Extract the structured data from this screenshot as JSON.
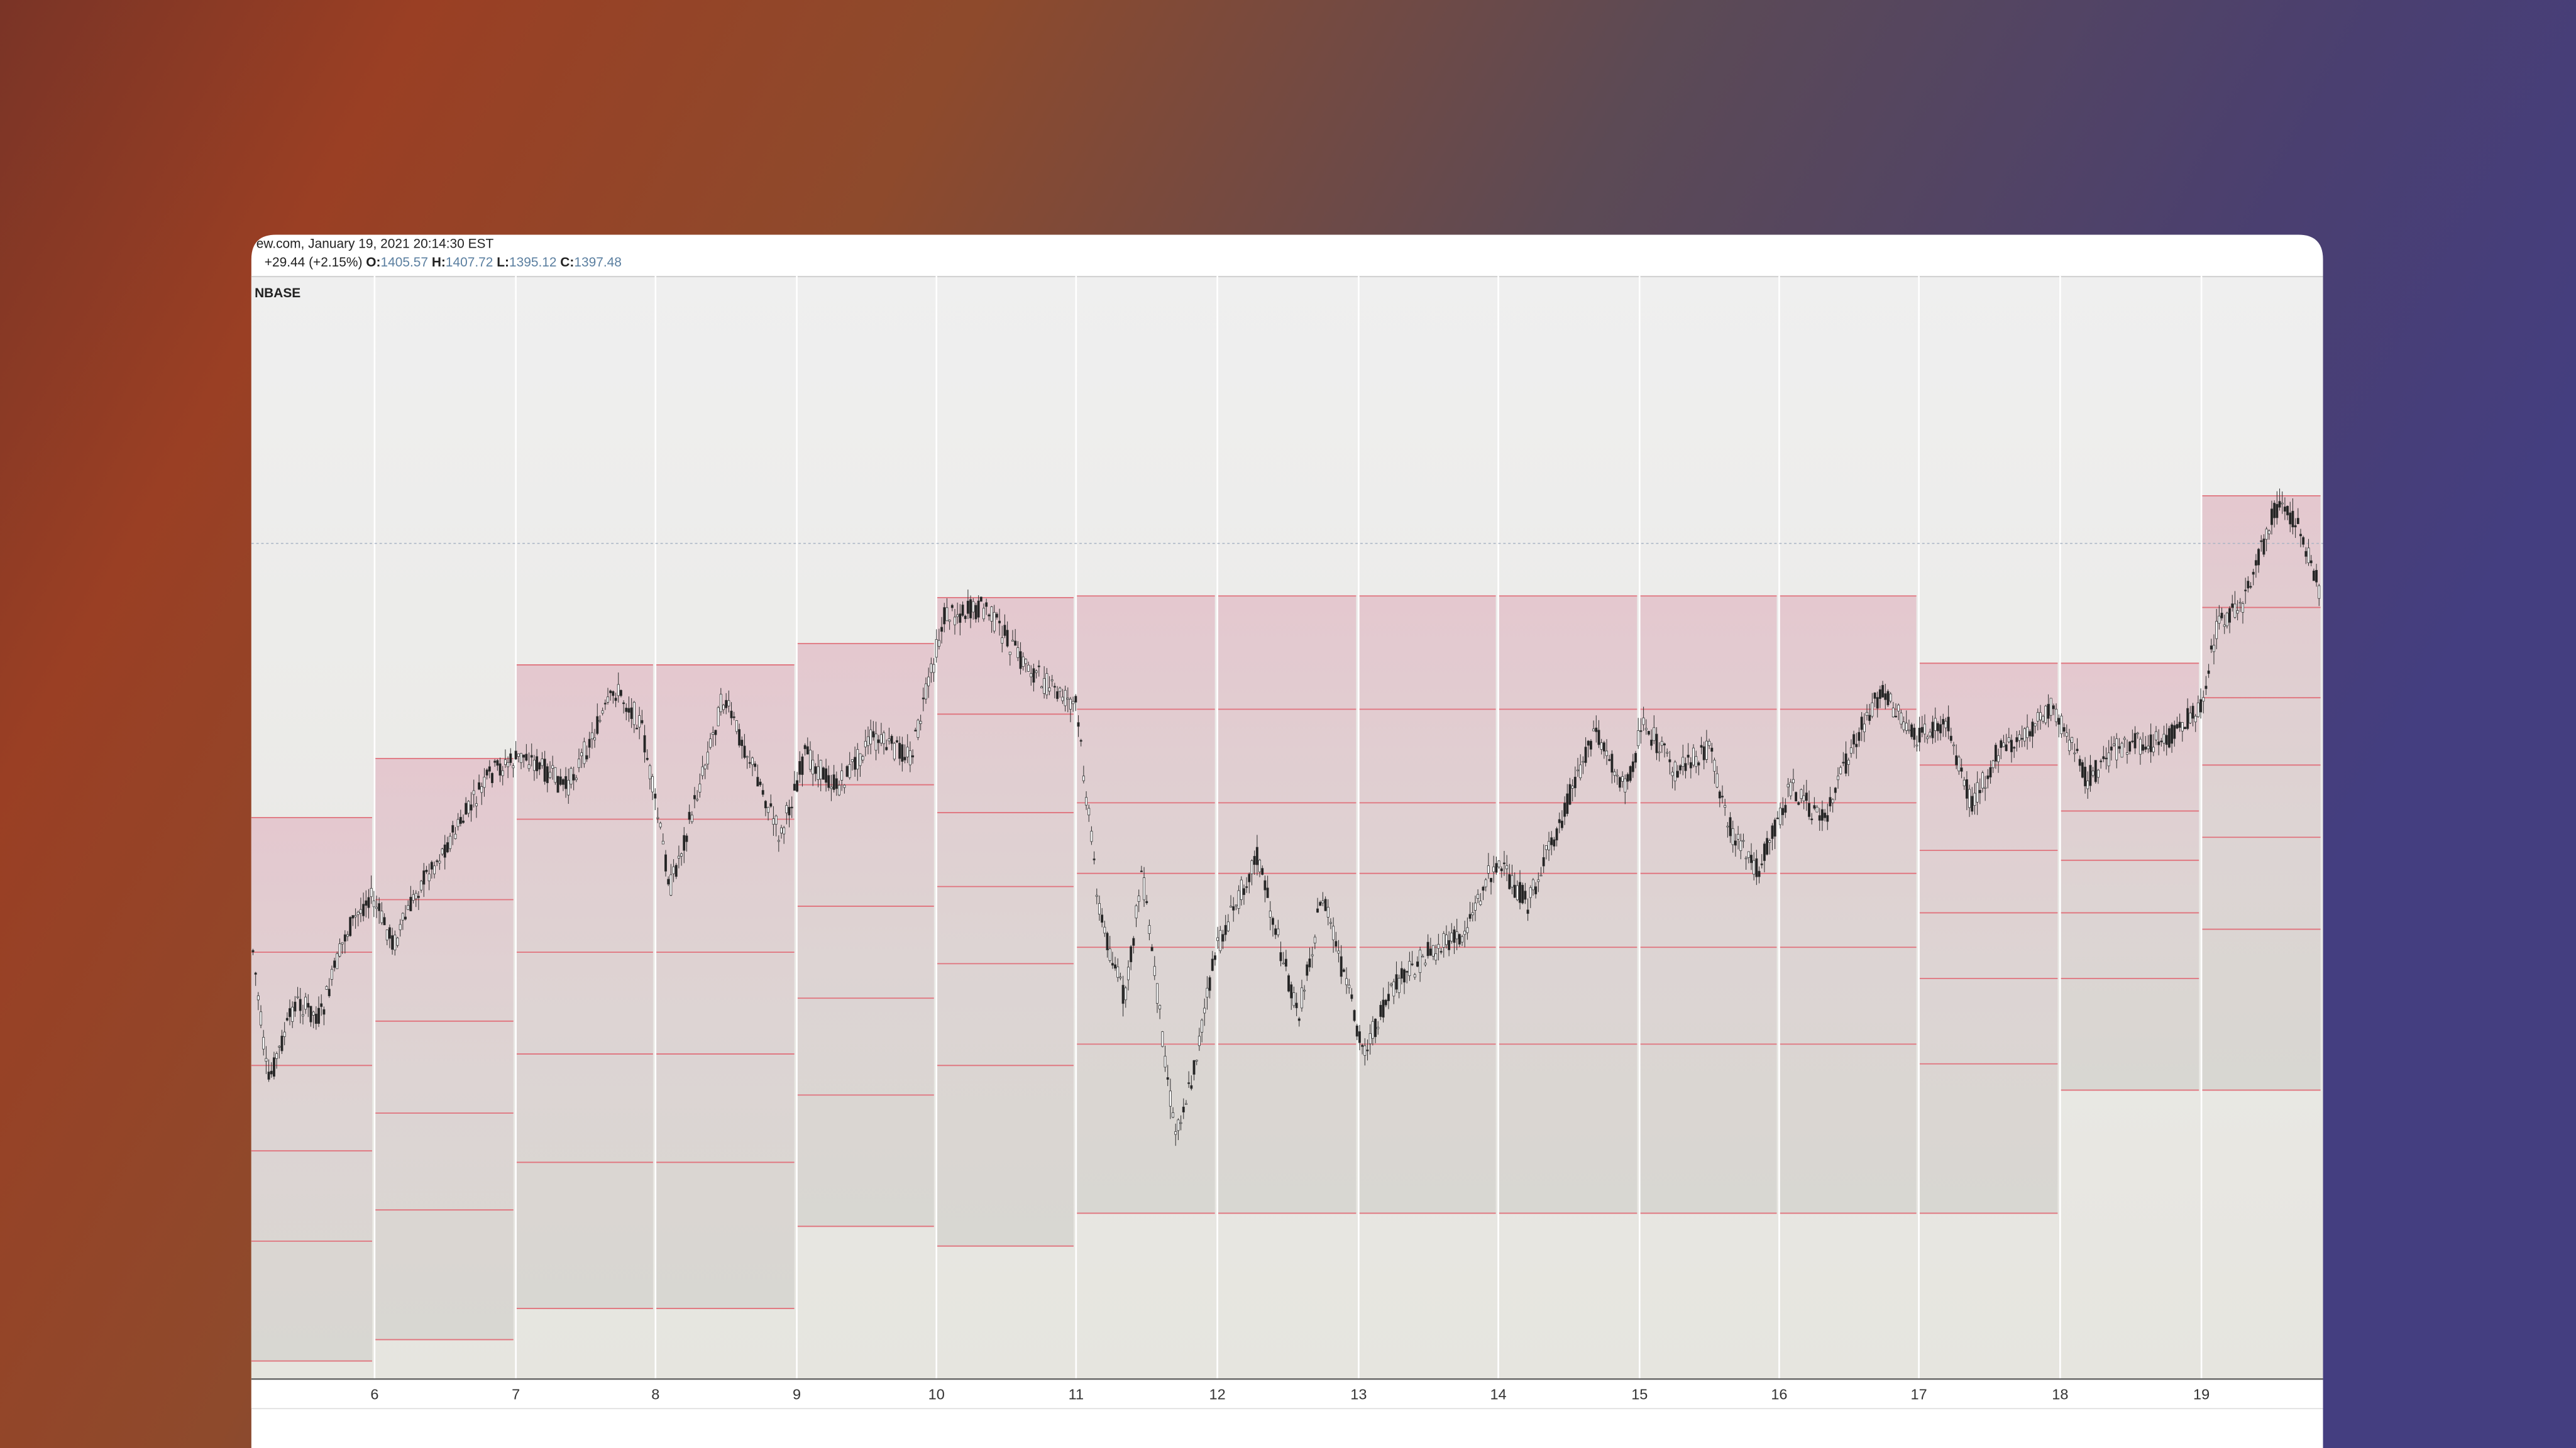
{
  "header": {
    "source_line": "ew.com, January 19, 2021 20:14:30 EST",
    "change": "+29.44 (+2.15%)",
    "open_label": "O:",
    "open": "1405.57",
    "high_label": "H:",
    "high": "1407.72",
    "low_label": "L:",
    "low": "1395.12",
    "close_label": "C:",
    "close": "1397.48"
  },
  "symbol": "NBASE",
  "x_axis": {
    "labels": [
      "6",
      "7",
      "8",
      "9",
      "10",
      "11",
      "12",
      "13",
      "14",
      "15",
      "16",
      "17",
      "18",
      "19"
    ]
  }
}
